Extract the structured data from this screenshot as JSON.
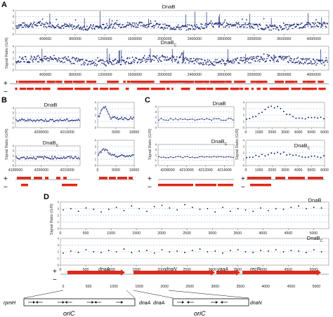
{
  "figure": {
    "panel_labels": {
      "A": "A",
      "B": "B",
      "C": "C",
      "D": "D"
    },
    "ylabel": "Signal Ratio (G/R)",
    "protein_labels": {
      "dnab": "DnaB",
      "dnabc": "DnaBc"
    },
    "strand_labels": {
      "plus": "+",
      "minus": "−"
    },
    "genes": [
      "dnaA",
      "dnaN",
      "yaaA",
      "recF"
    ],
    "ori_diagram": {
      "left": {
        "start_gene": "rpmH",
        "end_gene": "dnaA",
        "label": "oriC"
      },
      "right": {
        "start_gene": "dnaA",
        "end_gene": "dnaN",
        "label": "oriC"
      }
    }
  },
  "chart_data": [
    {
      "id": "A1",
      "type": "scatter",
      "title": "DnaB",
      "ylabel": "Signal Ratio (G/R)",
      "xlim": [
        0,
        4200000
      ],
      "ylim": [
        0,
        4
      ],
      "xticks": [
        "400000",
        "800000",
        "1200000",
        "1600000",
        "2000000",
        "2400000",
        "2800000",
        "3200000",
        "3600000",
        "4000000"
      ],
      "yticks": [
        "0",
        "1",
        "2",
        "3",
        "4"
      ],
      "grid": true,
      "series_color": "#1f2a78"
    },
    {
      "id": "A2",
      "type": "scatter",
      "title": "DnaBc",
      "ylabel": "Signal Ratio (G/R)",
      "xlim": [
        0,
        4200000
      ],
      "ylim": [
        0,
        4
      ],
      "xticks": [
        "400000",
        "800000",
        "1200000",
        "1600000",
        "2000000",
        "2400000",
        "2800000",
        "3200000",
        "3600000",
        "4000000"
      ],
      "yticks": [
        "0",
        "1",
        "2",
        "3",
        "4"
      ],
      "grid": true,
      "series_color": "#1f2a78"
    },
    {
      "id": "B1",
      "type": "line",
      "title": "DnaB",
      "xlim": [
        4190000,
        4215000
      ],
      "ylim": [
        0,
        4
      ],
      "xticks": [
        "4200000",
        "4210000"
      ],
      "yticks": [
        "0",
        "1",
        "2",
        "3",
        "4"
      ],
      "grid": true
    },
    {
      "id": "B2",
      "type": "line",
      "title": "DnaBc",
      "xlim": [
        4190000,
        4215000
      ],
      "ylim": [
        0,
        4
      ],
      "xticks": [
        "4190000",
        "4200000",
        "4210000"
      ],
      "yticks": [
        "0",
        "1",
        "2",
        "3",
        "4"
      ],
      "grid": true
    },
    {
      "id": "B3",
      "type": "line",
      "title": "",
      "xlim": [
        0,
        10000
      ],
      "ylim": [
        0,
        4
      ],
      "xticks": [
        "5000",
        "10000"
      ],
      "yticks": [
        "0",
        "1",
        "2",
        "3",
        "4"
      ],
      "grid": true
    },
    {
      "id": "B4",
      "type": "line",
      "title": "",
      "xlim": [
        0,
        10000
      ],
      "ylim": [
        0,
        4
      ],
      "xticks": [
        "0",
        "5000",
        "10000"
      ],
      "yticks": [
        "0",
        "1",
        "2",
        "3",
        "4"
      ],
      "grid": true
    },
    {
      "id": "C1",
      "type": "line",
      "title": "DnaB",
      "xlim": [
        4207000,
        4215000
      ],
      "ylim": [
        0,
        4
      ],
      "xticks": [],
      "yticks": [
        "0",
        "1",
        "2",
        "3",
        "4"
      ],
      "grid": true
    },
    {
      "id": "C2",
      "type": "line",
      "title": "DnaBc",
      "xlim": [
        4207000,
        4215000
      ],
      "ylim": [
        0,
        4
      ],
      "xticks": [
        "4208000",
        "4210000",
        "4212000",
        "4214000"
      ],
      "yticks": [
        "0",
        "1",
        "2",
        "3",
        "4"
      ],
      "grid": true
    },
    {
      "id": "C3",
      "type": "line",
      "title": "",
      "xlim": [
        0,
        6000
      ],
      "ylim": [
        0,
        4
      ],
      "xticks": [
        "0",
        "1000",
        "2000",
        "3000",
        "4000",
        "5000",
        "6000"
      ],
      "yticks": [
        "0",
        "1",
        "2",
        "3",
        "4"
      ],
      "grid": true
    },
    {
      "id": "C4",
      "type": "line",
      "title": "DnaBc",
      "xlim": [
        0,
        6000
      ],
      "ylim": [
        0,
        4
      ],
      "xticks": [
        "0",
        "1000",
        "2000",
        "3000",
        "4000",
        "5000",
        "6000"
      ],
      "yticks": [
        "0",
        "1",
        "2",
        "3",
        "4"
      ],
      "grid": true
    },
    {
      "id": "D1",
      "type": "scatter",
      "title": "DnaB",
      "xlim": [
        0,
        5300
      ],
      "ylim": [
        0,
        4
      ],
      "xticks": [
        "0",
        "500",
        "1000",
        "1500",
        "2000",
        "2500",
        "3000",
        "3500",
        "4000",
        "4500",
        "5000"
      ],
      "yticks": [
        "0",
        "1",
        "2",
        "3",
        "4"
      ],
      "grid": true,
      "x": [
        0,
        150,
        300,
        450,
        600,
        750,
        900,
        1050,
        1200,
        1350,
        1500,
        1650,
        1800,
        1950,
        2100,
        2250,
        2400,
        2550,
        2700,
        2850,
        3000,
        3150,
        3300,
        3450,
        3600,
        3750,
        3900,
        4050,
        4200,
        4350,
        4500,
        4650,
        4800,
        4950,
        5100
      ],
      "y": [
        2.8,
        3.0,
        2.6,
        3.1,
        2.9,
        2.5,
        2.9,
        3.2,
        2.7,
        3.4,
        3.0,
        2.6,
        3.3,
        3.5,
        3.1,
        2.8,
        3.6,
        3.2,
        2.9,
        3.0,
        2.5,
        3.2,
        2.6,
        3.0,
        2.8,
        2.6,
        3.1,
        2.7,
        3.0,
        2.9,
        3.2,
        3.4,
        3.0,
        3.2,
        3.1
      ]
    },
    {
      "id": "D2",
      "type": "scatter",
      "title": "DnaBc",
      "xlim": [
        0,
        5300
      ],
      "ylim": [
        0,
        4
      ],
      "xticks": [
        "0",
        "500",
        "1000",
        "1500",
        "2000",
        "2500",
        "3000",
        "3500",
        "4000",
        "4500",
        "5000"
      ],
      "yticks": [
        "0",
        "1",
        "2",
        "3",
        "4"
      ],
      "grid": true,
      "x": [
        0,
        150,
        300,
        450,
        600,
        750,
        900,
        1050,
        1200,
        1350,
        1500,
        1650,
        1800,
        1950,
        2100,
        2250,
        2400,
        2550,
        2700,
        2850,
        3000,
        3150,
        3300,
        3450,
        3600,
        3750,
        3900,
        4050,
        4200,
        4350,
        4500,
        4650,
        4800,
        4950,
        5100
      ],
      "y": [
        1.8,
        2.1,
        1.9,
        2.3,
        2.0,
        1.9,
        2.2,
        2.0,
        2.4,
        1.9,
        2.1,
        2.2,
        1.8,
        2.3,
        2.0,
        2.1,
        1.9,
        2.2,
        2.4,
        2.0,
        2.1,
        1.8,
        2.2,
        2.3,
        2.0,
        1.9,
        2.2,
        2.1,
        2.3,
        2.0,
        2.2,
        2.1,
        1.9,
        2.3,
        2.0
      ]
    }
  ]
}
